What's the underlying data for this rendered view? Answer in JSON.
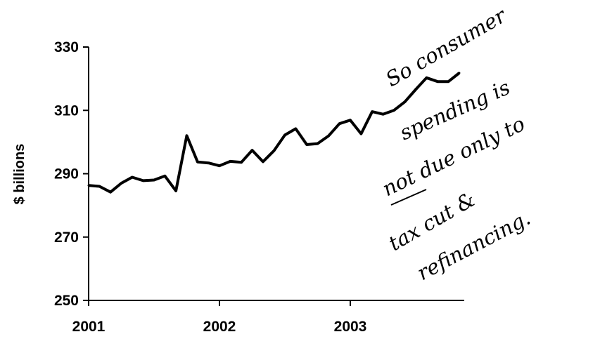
{
  "chart_data": {
    "type": "line",
    "ylabel": "$ billions",
    "ylim": [
      250,
      330
    ],
    "yticks": [
      250,
      270,
      290,
      310,
      330
    ],
    "xticks": [
      "2001",
      "2002",
      "2003"
    ],
    "grid": false,
    "series": [
      {
        "values": [
          {
            "x": 2001.0,
            "y": 286.3
          },
          {
            "x": 2001.083,
            "y": 286.0
          },
          {
            "x": 2001.167,
            "y": 284.2
          },
          {
            "x": 2001.25,
            "y": 287.0
          },
          {
            "x": 2001.333,
            "y": 288.9
          },
          {
            "x": 2001.417,
            "y": 287.8
          },
          {
            "x": 2001.5,
            "y": 288.0
          },
          {
            "x": 2001.583,
            "y": 289.3
          },
          {
            "x": 2001.667,
            "y": 284.6
          },
          {
            "x": 2001.75,
            "y": 302.0
          },
          {
            "x": 2001.833,
            "y": 293.7
          },
          {
            "x": 2001.917,
            "y": 293.4
          },
          {
            "x": 2002.0,
            "y": 292.5
          },
          {
            "x": 2002.083,
            "y": 293.9
          },
          {
            "x": 2002.167,
            "y": 293.6
          },
          {
            "x": 2002.25,
            "y": 297.4
          },
          {
            "x": 2002.333,
            "y": 293.8
          },
          {
            "x": 2002.417,
            "y": 297.3
          },
          {
            "x": 2002.5,
            "y": 302.2
          },
          {
            "x": 2002.583,
            "y": 304.2
          },
          {
            "x": 2002.667,
            "y": 299.2
          },
          {
            "x": 2002.75,
            "y": 299.5
          },
          {
            "x": 2002.833,
            "y": 301.9
          },
          {
            "x": 2002.917,
            "y": 305.8
          },
          {
            "x": 2003.0,
            "y": 306.9
          },
          {
            "x": 2003.083,
            "y": 302.6
          },
          {
            "x": 2003.167,
            "y": 309.6
          },
          {
            "x": 2003.25,
            "y": 308.8
          },
          {
            "x": 2003.333,
            "y": 310.0
          },
          {
            "x": 2003.417,
            "y": 312.7
          },
          {
            "x": 2003.5,
            "y": 316.6
          },
          {
            "x": 2003.583,
            "y": 320.3
          },
          {
            "x": 2003.667,
            "y": 319.1
          },
          {
            "x": 2003.75,
            "y": 319.1
          },
          {
            "x": 2003.833,
            "y": 321.8
          }
        ]
      }
    ],
    "annotation": {
      "lines": [
        "So consumer",
        "spending is",
        "not due only to",
        "tax cut &",
        "refinancing."
      ],
      "underlined_word": "not"
    }
  }
}
